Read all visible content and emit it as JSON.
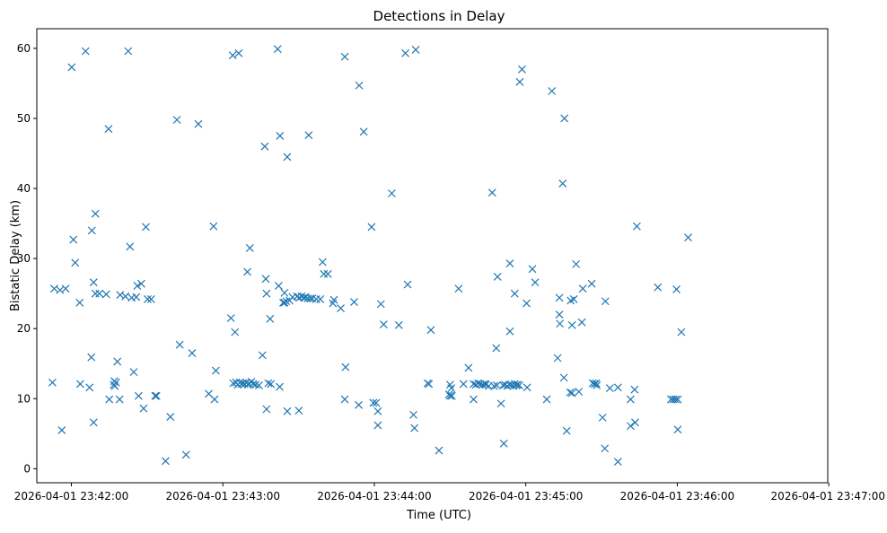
{
  "chart_data": {
    "type": "scatter",
    "title": "Detections in Delay",
    "xlabel": "Time (UTC)",
    "ylabel": "Bistatic Delay (km)",
    "marker": "x",
    "color": "#1f77b4",
    "x_unit": "seconds after 2026-04-01 23:41:00",
    "xlim": [
      46.3,
      359.6
    ],
    "ylim": [
      -2.0,
      62.8
    ],
    "x_ticks": [
      {
        "value": 60,
        "label": "2026-04-01 23:42:00"
      },
      {
        "value": 120,
        "label": "2026-04-01 23:43:00"
      },
      {
        "value": 180,
        "label": "2026-04-01 23:44:00"
      },
      {
        "value": 240,
        "label": "2026-04-01 23:45:00"
      },
      {
        "value": 300,
        "label": "2026-04-01 23:46:00"
      },
      {
        "value": 360,
        "label": "2026-04-01 23:47:00"
      }
    ],
    "y_ticks": [
      {
        "value": 0,
        "label": "0"
      },
      {
        "value": 10,
        "label": "10"
      },
      {
        "value": 20,
        "label": "20"
      },
      {
        "value": 30,
        "label": "30"
      },
      {
        "value": 40,
        "label": "40"
      },
      {
        "value": 50,
        "label": "50"
      },
      {
        "value": 60,
        "label": "60"
      }
    ],
    "points": [
      [
        52.5,
        12.3
      ],
      [
        53.2,
        25.7
      ],
      [
        55.5,
        25.5
      ],
      [
        56.2,
        5.5
      ],
      [
        57.7,
        25.7
      ],
      [
        60.1,
        57.3
      ],
      [
        60.8,
        32.7
      ],
      [
        61.5,
        29.4
      ],
      [
        63.3,
        23.7
      ],
      [
        63.5,
        12.1
      ],
      [
        65.6,
        59.6
      ],
      [
        67.2,
        11.6
      ],
      [
        67.9,
        15.9
      ],
      [
        68.1,
        34.0
      ],
      [
        68.8,
        26.6
      ],
      [
        69.5,
        25.0
      ],
      [
        68.8,
        6.6
      ],
      [
        69.5,
        36.4
      ],
      [
        71.1,
        25.0
      ],
      [
        73.8,
        24.9
      ],
      [
        74.7,
        48.5
      ],
      [
        75.0,
        9.9
      ],
      [
        76.8,
        12.0
      ],
      [
        77.0,
        12.5
      ],
      [
        77.2,
        11.8
      ],
      [
        77.7,
        12.3
      ],
      [
        78.2,
        15.3
      ],
      [
        79.1,
        9.9
      ],
      [
        79.3,
        24.8
      ],
      [
        81.4,
        24.6
      ],
      [
        82.5,
        59.6
      ],
      [
        83.2,
        31.7
      ],
      [
        83.9,
        24.4
      ],
      [
        84.7,
        13.8
      ],
      [
        85.7,
        24.5
      ],
      [
        86.1,
        26.1
      ],
      [
        86.6,
        10.4
      ],
      [
        87.7,
        26.4
      ],
      [
        88.6,
        8.6
      ],
      [
        89.5,
        34.5
      ],
      [
        90.2,
        24.2
      ],
      [
        91.6,
        24.2
      ],
      [
        93.2,
        10.4
      ],
      [
        93.7,
        10.4
      ],
      [
        97.3,
        1.1
      ],
      [
        99.2,
        7.4
      ],
      [
        101.8,
        49.8
      ],
      [
        102.9,
        17.7
      ],
      [
        105.4,
        2.0
      ],
      [
        107.8,
        16.5
      ],
      [
        110.3,
        49.2
      ],
      [
        114.4,
        10.7
      ],
      [
        116.3,
        34.6
      ],
      [
        116.7,
        9.9
      ],
      [
        117.2,
        14.0
      ],
      [
        123.2,
        21.5
      ],
      [
        123.9,
        59.0
      ],
      [
        124.1,
        12.2
      ],
      [
        124.8,
        19.5
      ],
      [
        125.2,
        12.3
      ],
      [
        125.9,
        12.0
      ],
      [
        126.3,
        59.3
      ],
      [
        126.8,
        12.3
      ],
      [
        127.4,
        12.1
      ],
      [
        127.9,
        12.2
      ],
      [
        128.6,
        12.1
      ],
      [
        129.3,
        12.3
      ],
      [
        130.0,
        12.0
      ],
      [
        130.4,
        12.2
      ],
      [
        131.3,
        12.4
      ],
      [
        132.0,
        12.1
      ],
      [
        129.7,
        28.1
      ],
      [
        130.7,
        31.5
      ],
      [
        133.0,
        12.0
      ],
      [
        134.3,
        11.9
      ],
      [
        135.7,
        16.2
      ],
      [
        136.6,
        46.0
      ],
      [
        137.3,
        8.5
      ],
      [
        137.0,
        27.1
      ],
      [
        137.3,
        25.0
      ],
      [
        138.0,
        12.2
      ],
      [
        138.7,
        21.4
      ],
      [
        139.0,
        12.1
      ],
      [
        141.7,
        59.9
      ],
      [
        142.1,
        26.1
      ],
      [
        142.5,
        11.7
      ],
      [
        142.6,
        47.5
      ],
      [
        143.9,
        23.7
      ],
      [
        144.4,
        23.7
      ],
      [
        144.4,
        25.1
      ],
      [
        145.1,
        23.9
      ],
      [
        145.5,
        8.2
      ],
      [
        145.5,
        44.5
      ],
      [
        146.4,
        24.0
      ],
      [
        147.6,
        24.5
      ],
      [
        149.4,
        24.6
      ],
      [
        150.1,
        8.3
      ],
      [
        150.3,
        24.4
      ],
      [
        151.2,
        24.6
      ],
      [
        152.1,
        24.4
      ],
      [
        152.7,
        24.5
      ],
      [
        153.7,
        24.3
      ],
      [
        154.0,
        47.6
      ],
      [
        154.7,
        24.3
      ],
      [
        155.4,
        24.3
      ],
      [
        157.0,
        24.2
      ],
      [
        158.6,
        24.2
      ],
      [
        159.5,
        29.5
      ],
      [
        160.0,
        27.8
      ],
      [
        161.6,
        27.8
      ],
      [
        163.6,
        23.6
      ],
      [
        164.0,
        24.1
      ],
      [
        166.7,
        22.9
      ],
      [
        168.3,
        58.8
      ],
      [
        168.3,
        9.9
      ],
      [
        168.6,
        14.5
      ],
      [
        172.0,
        23.8
      ],
      [
        173.8,
        9.1
      ],
      [
        174.0,
        54.7
      ],
      [
        175.8,
        48.1
      ],
      [
        178.9,
        34.5
      ],
      [
        179.6,
        9.4
      ],
      [
        180.7,
        9.4
      ],
      [
        181.4,
        8.2
      ],
      [
        181.4,
        6.2
      ],
      [
        182.6,
        23.5
      ],
      [
        183.7,
        20.6
      ],
      [
        186.9,
        39.3
      ],
      [
        189.7,
        20.5
      ],
      [
        192.3,
        59.3
      ],
      [
        193.2,
        26.3
      ],
      [
        195.5,
        7.7
      ],
      [
        195.9,
        5.8
      ],
      [
        196.4,
        59.8
      ],
      [
        201.1,
        12.2
      ],
      [
        201.6,
        12.1
      ],
      [
        202.4,
        19.8
      ],
      [
        205.6,
        2.6
      ],
      [
        209.6,
        10.6
      ],
      [
        210.0,
        10.4
      ],
      [
        210.0,
        12.0
      ],
      [
        210.5,
        11.5
      ],
      [
        210.7,
        10.4
      ],
      [
        213.4,
        25.7
      ],
      [
        215.3,
        12.1
      ],
      [
        217.3,
        14.4
      ],
      [
        219.3,
        9.9
      ],
      [
        219.3,
        12.1
      ],
      [
        220.2,
        12.0
      ],
      [
        221.1,
        12.2
      ],
      [
        222.0,
        12.1
      ],
      [
        222.9,
        12.0
      ],
      [
        223.8,
        12.1
      ],
      [
        224.2,
        12.0
      ],
      [
        225.3,
        11.8
      ],
      [
        226.7,
        39.4
      ],
      [
        227.4,
        11.8
      ],
      [
        228.3,
        17.2
      ],
      [
        228.5,
        11.9
      ],
      [
        228.8,
        27.4
      ],
      [
        230.2,
        9.3
      ],
      [
        231.3,
        3.6
      ],
      [
        231.0,
        11.9
      ],
      [
        231.7,
        12.0
      ],
      [
        232.6,
        11.8
      ],
      [
        233.5,
        12.0
      ],
      [
        233.7,
        29.3
      ],
      [
        233.7,
        19.6
      ],
      [
        234.4,
        12.0
      ],
      [
        235.1,
        11.8
      ],
      [
        235.6,
        12.1
      ],
      [
        236.2,
        11.9
      ],
      [
        235.6,
        25.0
      ],
      [
        236.7,
        12.0
      ],
      [
        237.4,
        11.9
      ],
      [
        237.6,
        55.2
      ],
      [
        238.5,
        57.0
      ],
      [
        240.3,
        23.6
      ],
      [
        240.5,
        11.6
      ],
      [
        242.6,
        28.5
      ],
      [
        243.7,
        26.6
      ],
      [
        248.3,
        9.9
      ],
      [
        250.3,
        53.9
      ],
      [
        252.6,
        15.8
      ],
      [
        253.3,
        22.0
      ],
      [
        253.3,
        24.4
      ],
      [
        253.5,
        20.7
      ],
      [
        254.6,
        40.7
      ],
      [
        255.1,
        13.0
      ],
      [
        255.3,
        50.0
      ],
      [
        256.2,
        5.4
      ],
      [
        257.6,
        10.9
      ],
      [
        257.8,
        24.0
      ],
      [
        258.3,
        20.5
      ],
      [
        258.3,
        10.8
      ],
      [
        259.0,
        24.2
      ],
      [
        259.9,
        29.2
      ],
      [
        261.0,
        11.0
      ],
      [
        262.2,
        20.9
      ],
      [
        262.6,
        25.7
      ],
      [
        266.1,
        26.4
      ],
      [
        266.5,
        12.2
      ],
      [
        267.2,
        12.1
      ],
      [
        267.9,
        12.2
      ],
      [
        268.1,
        11.9
      ],
      [
        270.4,
        7.3
      ],
      [
        271.3,
        2.9
      ],
      [
        271.5,
        23.9
      ],
      [
        273.3,
        11.5
      ],
      [
        276.5,
        1.0
      ],
      [
        276.5,
        11.6
      ],
      [
        281.5,
        6.1
      ],
      [
        281.5,
        9.9
      ],
      [
        283.3,
        6.6
      ],
      [
        283.1,
        11.3
      ],
      [
        284.0,
        34.6
      ],
      [
        292.3,
        25.9
      ],
      [
        297.5,
        9.9
      ],
      [
        298.4,
        9.9
      ],
      [
        299.3,
        9.9
      ],
      [
        299.7,
        25.6
      ],
      [
        300.2,
        9.9
      ],
      [
        300.2,
        5.6
      ],
      [
        301.6,
        19.5
      ],
      [
        304.3,
        33.0
      ]
    ]
  }
}
